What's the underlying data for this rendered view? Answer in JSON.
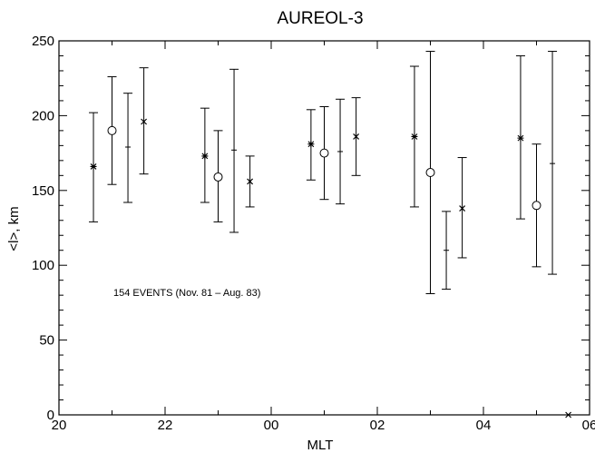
{
  "chart_data": {
    "type": "scatter",
    "title": "AUREOL-3",
    "xlabel": "MLT",
    "ylabel": "<l>, km",
    "xlim": [
      20,
      30
    ],
    "ylim": [
      0,
      250
    ],
    "x_tick_values": [
      20,
      22,
      24,
      26,
      28,
      30
    ],
    "x_tick_labels": [
      "20",
      "22",
      "00",
      "02",
      "04",
      "06"
    ],
    "y_tick_values": [
      0,
      50,
      100,
      150,
      200,
      250
    ],
    "y_tick_labels": [
      "0",
      "50",
      "100",
      "150",
      "200",
      "250"
    ],
    "grid": false,
    "annotation": "154 EVENTS (Nov. 81 – Aug. 83)",
    "series": [
      {
        "marker": "asterisk",
        "points": [
          {
            "x": 20.65,
            "y": 166,
            "ylow": 129,
            "yhigh": 202
          },
          {
            "x": 22.75,
            "y": 173,
            "ylow": 142,
            "yhigh": 205
          },
          {
            "x": 24.75,
            "y": 181,
            "ylow": 157,
            "yhigh": 204
          },
          {
            "x": 26.7,
            "y": 186,
            "ylow": 139,
            "yhigh": 233
          },
          {
            "x": 28.7,
            "y": 185,
            "ylow": 131,
            "yhigh": 240
          }
        ]
      },
      {
        "marker": "circle",
        "points": [
          {
            "x": 21.0,
            "y": 190,
            "ylow": 154,
            "yhigh": 226
          },
          {
            "x": 23.0,
            "y": 159,
            "ylow": 129,
            "yhigh": 190
          },
          {
            "x": 25.0,
            "y": 175,
            "ylow": 144,
            "yhigh": 206
          },
          {
            "x": 27.0,
            "y": 162,
            "ylow": 81,
            "yhigh": 243
          },
          {
            "x": 29.0,
            "y": 140,
            "ylow": 99,
            "yhigh": 181
          }
        ]
      },
      {
        "marker": "none",
        "points": [
          {
            "x": 21.3,
            "y": 179,
            "ylow": 142,
            "yhigh": 215
          },
          {
            "x": 23.3,
            "y": 177,
            "ylow": 122,
            "yhigh": 231
          },
          {
            "x": 25.3,
            "y": 176,
            "ylow": 141,
            "yhigh": 211
          },
          {
            "x": 27.3,
            "y": 110,
            "ylow": 84,
            "yhigh": 136
          },
          {
            "x": 29.3,
            "y": 168,
            "ylow": 94,
            "yhigh": 243
          }
        ]
      },
      {
        "marker": "cross",
        "points": [
          {
            "x": 21.6,
            "y": 196,
            "ylow": 161,
            "yhigh": 232
          },
          {
            "x": 23.6,
            "y": 156,
            "ylow": 139,
            "yhigh": 173
          },
          {
            "x": 25.6,
            "y": 186,
            "ylow": 160,
            "yhigh": 212
          },
          {
            "x": 27.6,
            "y": 138,
            "ylow": 105,
            "yhigh": 172
          },
          {
            "x": 29.6,
            "y": 0
          }
        ]
      }
    ]
  }
}
